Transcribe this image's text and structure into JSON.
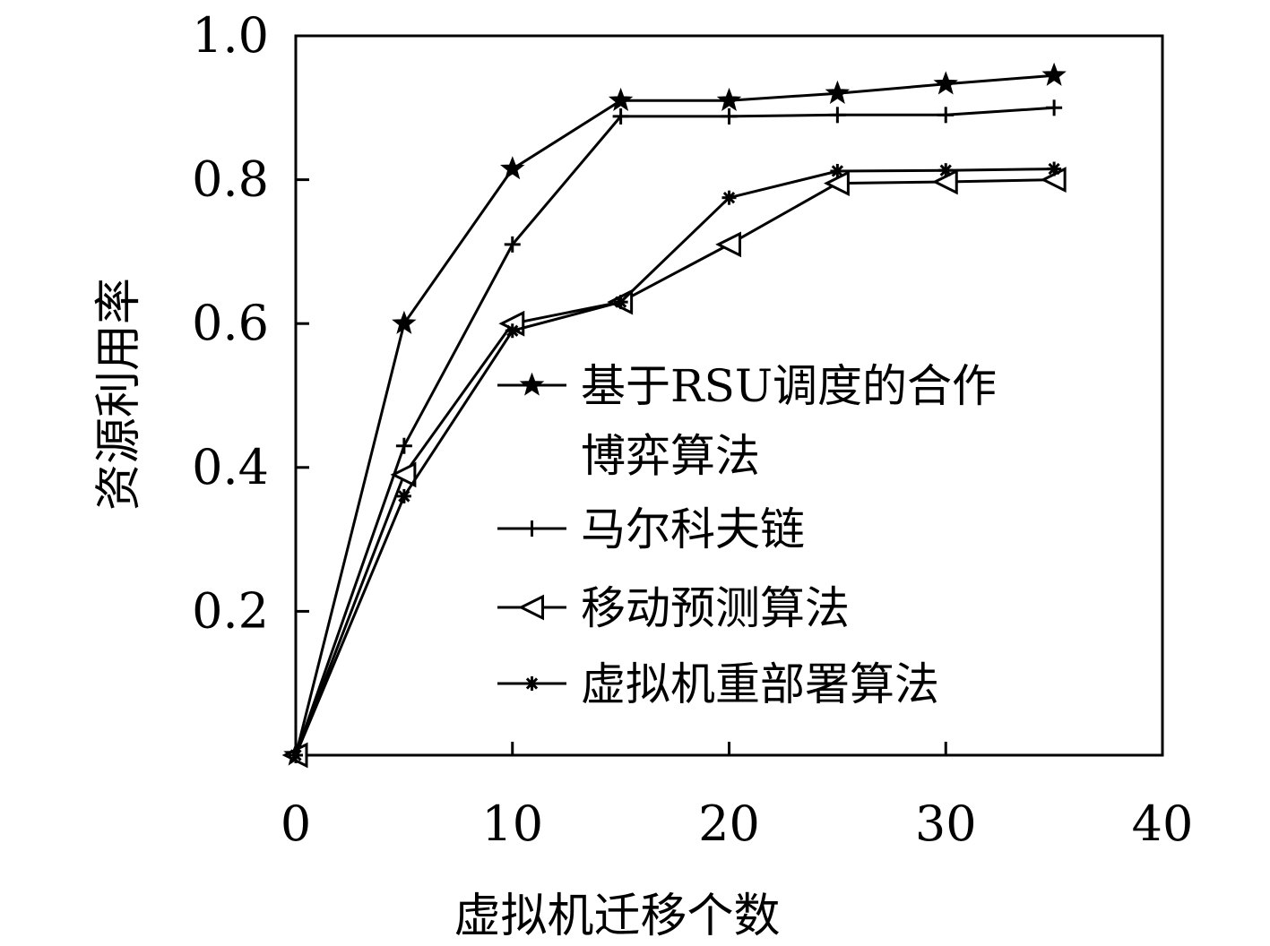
{
  "chart_data": {
    "type": "line",
    "xlabel": "虚拟机迁移个数",
    "ylabel": "资源利用率",
    "xlim": [
      0,
      40
    ],
    "ylim": [
      0,
      1.0
    ],
    "x_ticks": [
      0,
      10,
      20,
      30,
      40
    ],
    "x_tick_labels": [
      "0",
      "10",
      "20",
      "30",
      "40"
    ],
    "y_ticks": [
      0.2,
      0.4,
      0.6,
      0.8,
      1.0
    ],
    "y_tick_labels": [
      "0.2",
      "0.4",
      "0.6",
      "0.8",
      "1.0"
    ],
    "grid": false,
    "legend_position": "center-right",
    "series": [
      {
        "name": "基于RSU调度的合作博弈算法",
        "legend_lines": [
          "基于RSU调度的合作",
          "博弈算法"
        ],
        "marker": "star",
        "x": [
          0,
          5,
          10,
          15,
          20,
          25,
          30,
          35
        ],
        "y": [
          0,
          0.6,
          0.815,
          0.91,
          0.91,
          0.92,
          0.933,
          0.945
        ]
      },
      {
        "name": "马尔科夫链",
        "legend_lines": [
          "马尔科夫链"
        ],
        "marker": "plus",
        "x": [
          0,
          5,
          10,
          15,
          20,
          25,
          30,
          35
        ],
        "y": [
          0,
          0.43,
          0.71,
          0.888,
          0.888,
          0.89,
          0.89,
          0.9
        ]
      },
      {
        "name": "移动预测算法",
        "legend_lines": [
          "移动预测算法"
        ],
        "marker": "triangle-left",
        "x": [
          0,
          5,
          10,
          15,
          20,
          25,
          30,
          35
        ],
        "y": [
          0,
          0.39,
          0.6,
          0.63,
          0.71,
          0.795,
          0.797,
          0.8
        ]
      },
      {
        "name": "虚拟机重部署算法",
        "legend_lines": [
          "虚拟机重部署算法"
        ],
        "marker": "asterisk",
        "x": [
          0,
          5,
          10,
          15,
          20,
          25,
          30,
          35
        ],
        "y": [
          0,
          0.36,
          0.59,
          0.63,
          0.775,
          0.812,
          0.813,
          0.815
        ]
      }
    ]
  }
}
